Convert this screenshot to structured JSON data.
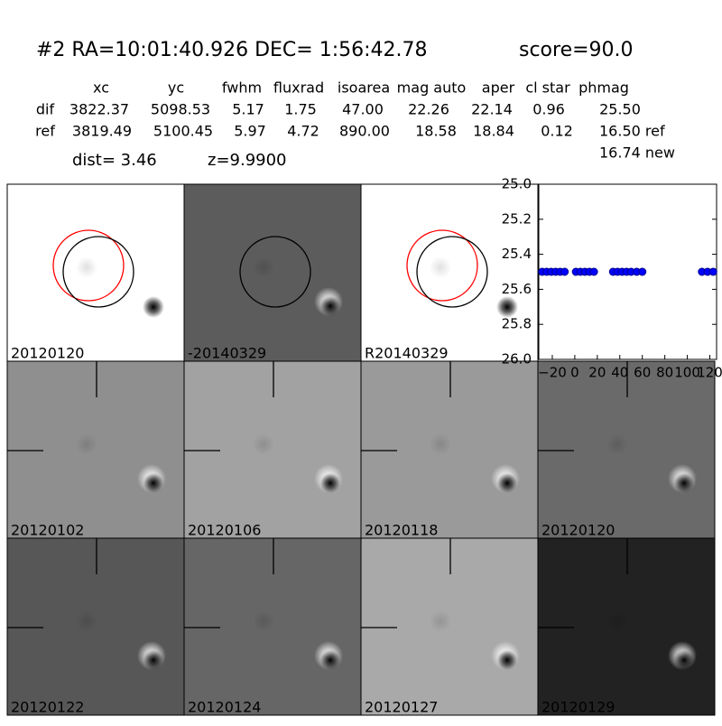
{
  "header": {
    "title": "#2   RA=10:01:40.926 DEC= 1:56:42.78",
    "score": "score=90.0",
    "dist": "dist=  3.46",
    "z": "z=9.9900"
  },
  "table": {
    "columns": [
      "xc",
      "yc",
      "fwhm",
      "fluxrad",
      "isoarea",
      "mag auto",
      "aper",
      "cl star",
      "phmag"
    ],
    "rows": [
      [
        "dif",
        "3822.37",
        "5098.53",
        "5.17",
        "1.75",
        "47.00",
        "22.26",
        "22.14",
        "0.96",
        "25.50"
      ],
      [
        "ref",
        "3819.49",
        "5100.45",
        "5.97",
        "4.72",
        "890.00",
        "18.58",
        "18.84",
        "0.12",
        "16.50 ref"
      ]
    ],
    "extra": "16.74 new"
  },
  "panels": [
    {
      "label": "20120120"
    },
    {
      "label": "-20140329"
    },
    {
      "label": "R20140329"
    },
    {
      "label": "20120102"
    },
    {
      "label": "20120106"
    },
    {
      "label": "20120118"
    },
    {
      "label": "20120120",
      "color": "#ff0000"
    },
    {
      "label": "20120122"
    },
    {
      "label": "20120124"
    },
    {
      "label": "20120127"
    },
    {
      "label": "20120129"
    }
  ],
  "chart_data": {
    "type": "scatter",
    "color": "#0000ff",
    "x": [
      -29,
      -25,
      -21,
      -17,
      -13,
      -9,
      1,
      5,
      9,
      13,
      17,
      34,
      38,
      42,
      46,
      50,
      55,
      60,
      113,
      118,
      123
    ],
    "y": [
      25.5,
      25.5,
      25.5,
      25.5,
      25.5,
      25.5,
      25.5,
      25.5,
      25.5,
      25.5,
      25.5,
      25.5,
      25.5,
      25.5,
      25.5,
      25.5,
      25.5,
      25.5,
      25.5,
      25.5,
      25.5
    ],
    "xlim": [
      -32,
      126
    ],
    "ylim": [
      25.0,
      26.0
    ],
    "y_inverted": true,
    "xticks": [
      {
        "value": -20,
        "label": "−20"
      },
      0,
      20,
      40,
      60,
      80,
      100,
      120
    ],
    "yticks": [
      {
        "value": 25.0,
        "label": "25.0"
      },
      {
        "value": 25.2,
        "label": "25.2"
      },
      {
        "value": 25.4,
        "label": "25.4"
      },
      {
        "value": 25.6,
        "label": "25.6"
      },
      {
        "value": 25.8,
        "label": "25.8"
      },
      {
        "value": 26.0,
        "label": "26.0"
      }
    ]
  }
}
